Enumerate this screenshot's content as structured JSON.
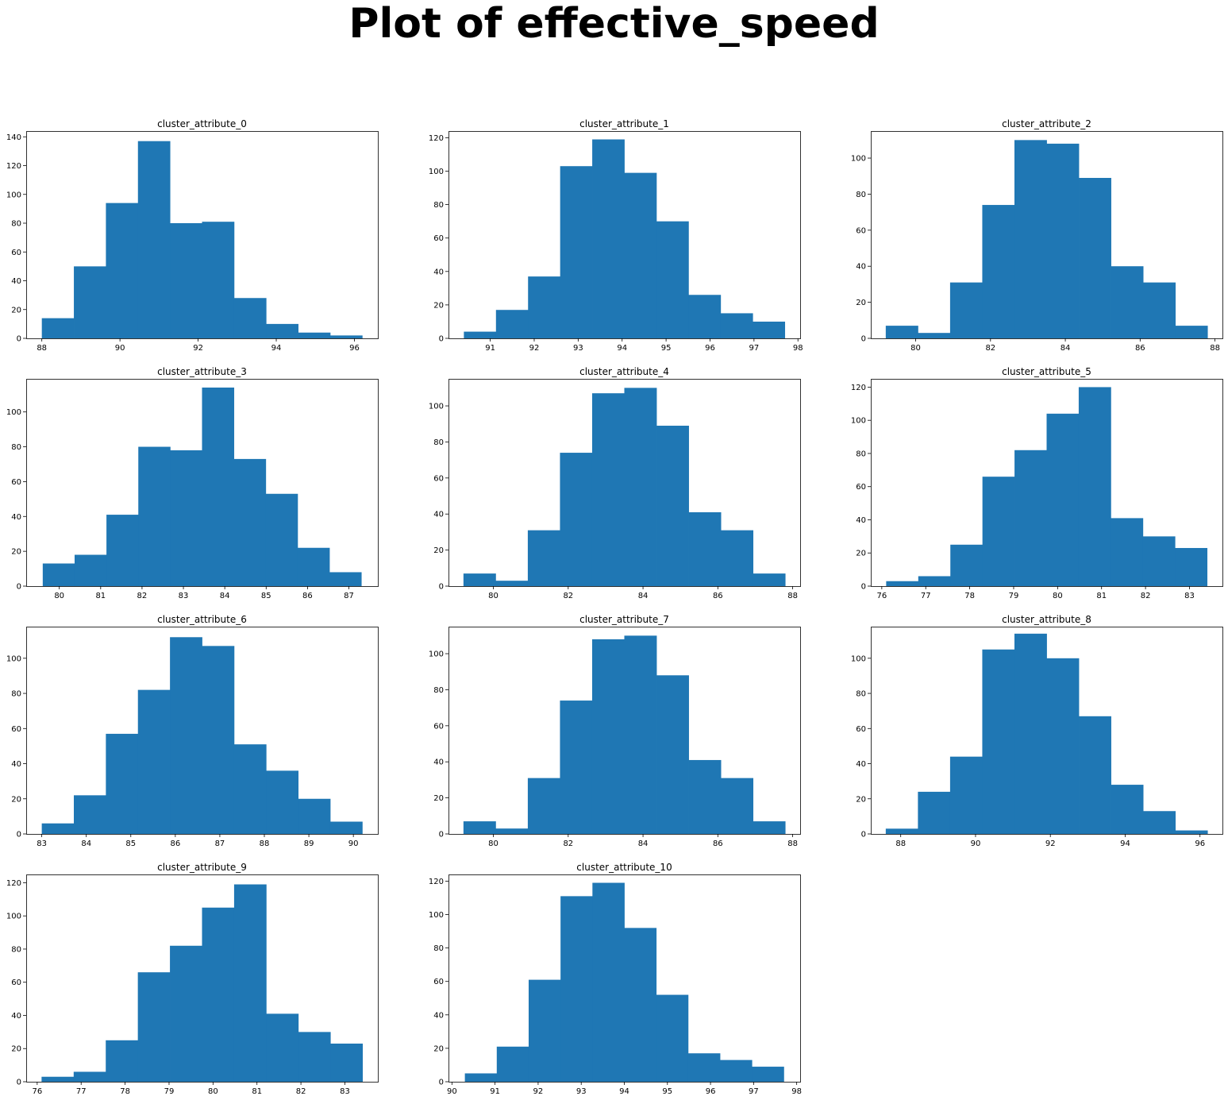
{
  "suptitle": "Plot of effective_speed",
  "bar_color": "#1f77b4",
  "chart_data": [
    {
      "type": "bar",
      "title": "cluster_attribute_0",
      "edges": [
        88.0,
        88.82,
        89.64,
        90.46,
        91.28,
        92.1,
        92.92,
        93.74,
        94.56,
        95.38,
        96.2
      ],
      "values": [
        14,
        50,
        94,
        137,
        80,
        81,
        28,
        10,
        4,
        2
      ],
      "xticks": [
        88,
        90,
        92,
        94,
        96
      ],
      "xticklabels": [
        "88",
        "90",
        "92",
        "94",
        "96"
      ],
      "xlim": [
        87.6,
        96.6
      ],
      "yticks": [
        0,
        20,
        40,
        60,
        80,
        100,
        120,
        140
      ],
      "yticklabels": [
        "0",
        "20",
        "40",
        "60",
        "80",
        "100",
        "120",
        "140"
      ],
      "ylim": [
        0,
        144
      ]
    },
    {
      "type": "bar",
      "title": "cluster_attribute_1",
      "edges": [
        90.4,
        91.13,
        91.86,
        92.59,
        93.32,
        94.05,
        94.78,
        95.51,
        96.24,
        96.97,
        97.7
      ],
      "values": [
        4,
        17,
        37,
        103,
        119,
        99,
        70,
        26,
        15,
        10
      ],
      "xticks": [
        91,
        92,
        93,
        94,
        95,
        96,
        97,
        98
      ],
      "xticklabels": [
        "91",
        "92",
        "93",
        "94",
        "95",
        "96",
        "97",
        "98"
      ],
      "xlim": [
        90.05,
        98.05
      ],
      "yticks": [
        0,
        20,
        40,
        60,
        80,
        100,
        120
      ],
      "yticklabels": [
        "0",
        "20",
        "40",
        "60",
        "80",
        "100",
        "120"
      ],
      "ylim": [
        0,
        124
      ]
    },
    {
      "type": "bar",
      "title": "cluster_attribute_2",
      "edges": [
        79.2,
        80.06,
        80.92,
        81.78,
        82.64,
        83.5,
        84.36,
        85.22,
        86.08,
        86.94,
        87.8
      ],
      "values": [
        7,
        3,
        31,
        74,
        110,
        108,
        89,
        40,
        31,
        7
      ],
      "xticks": [
        80,
        82,
        84,
        86,
        88
      ],
      "xticklabels": [
        "80",
        "82",
        "84",
        "86",
        "88"
      ],
      "xlim": [
        78.8,
        88.2
      ],
      "yticks": [
        0,
        20,
        40,
        60,
        80,
        100
      ],
      "yticklabels": [
        "0",
        "20",
        "40",
        "60",
        "80",
        "100"
      ],
      "ylim": [
        0,
        115
      ]
    },
    {
      "type": "bar",
      "title": "cluster_attribute_3",
      "edges": [
        79.6,
        80.37,
        81.14,
        81.91,
        82.68,
        83.45,
        84.22,
        84.99,
        85.76,
        86.53,
        87.3
      ],
      "values": [
        13,
        18,
        41,
        80,
        78,
        114,
        73,
        53,
        22,
        8
      ],
      "xticks": [
        80,
        81,
        82,
        83,
        84,
        85,
        86,
        87
      ],
      "xticklabels": [
        "80",
        "81",
        "82",
        "83",
        "84",
        "85",
        "86",
        "87"
      ],
      "xlim": [
        79.2,
        87.7
      ],
      "yticks": [
        0,
        20,
        40,
        60,
        80,
        100
      ],
      "yticklabels": [
        "0",
        "20",
        "40",
        "60",
        "80",
        "100"
      ],
      "ylim": [
        0,
        119
      ]
    },
    {
      "type": "bar",
      "title": "cluster_attribute_4",
      "edges": [
        79.2,
        80.06,
        80.92,
        81.78,
        82.64,
        83.5,
        84.36,
        85.22,
        86.08,
        86.94,
        87.8
      ],
      "values": [
        7,
        3,
        31,
        74,
        107,
        110,
        89,
        41,
        31,
        7
      ],
      "xticks": [
        80,
        82,
        84,
        86,
        88
      ],
      "xticklabels": [
        "80",
        "82",
        "84",
        "86",
        "88"
      ],
      "xlim": [
        78.8,
        88.2
      ],
      "yticks": [
        0,
        20,
        40,
        60,
        80,
        100
      ],
      "yticklabels": [
        "0",
        "20",
        "40",
        "60",
        "80",
        "100"
      ],
      "ylim": [
        0,
        115
      ]
    },
    {
      "type": "bar",
      "title": "cluster_attribute_5",
      "edges": [
        76.1,
        76.83,
        77.56,
        78.29,
        79.02,
        79.75,
        80.48,
        81.21,
        81.94,
        82.67,
        83.4
      ],
      "values": [
        3,
        6,
        25,
        66,
        82,
        104,
        120,
        41,
        30,
        23
      ],
      "xticks": [
        76,
        77,
        78,
        79,
        80,
        81,
        82,
        83
      ],
      "xticklabels": [
        "76",
        "77",
        "78",
        "79",
        "80",
        "81",
        "82",
        "83"
      ],
      "xlim": [
        75.75,
        83.75
      ],
      "yticks": [
        0,
        20,
        40,
        60,
        80,
        100,
        120
      ],
      "yticklabels": [
        "0",
        "20",
        "40",
        "60",
        "80",
        "100",
        "120"
      ],
      "ylim": [
        0,
        125
      ]
    },
    {
      "type": "bar",
      "title": "cluster_attribute_6",
      "edges": [
        83.0,
        83.72,
        84.44,
        85.16,
        85.88,
        86.6,
        87.32,
        88.04,
        88.76,
        89.48,
        90.2
      ],
      "values": [
        6,
        22,
        57,
        82,
        112,
        107,
        51,
        36,
        20,
        7
      ],
      "xticks": [
        83,
        84,
        85,
        86,
        87,
        88,
        89,
        90
      ],
      "xticklabels": [
        "83",
        "84",
        "85",
        "86",
        "87",
        "88",
        "89",
        "90"
      ],
      "xlim": [
        82.65,
        90.55
      ],
      "yticks": [
        0,
        20,
        40,
        60,
        80,
        100
      ],
      "yticklabels": [
        "0",
        "20",
        "40",
        "60",
        "80",
        "100"
      ],
      "ylim": [
        0,
        118
      ]
    },
    {
      "type": "bar",
      "title": "cluster_attribute_7",
      "edges": [
        79.2,
        80.06,
        80.92,
        81.78,
        82.64,
        83.5,
        84.36,
        85.22,
        86.08,
        86.94,
        87.8
      ],
      "values": [
        7,
        3,
        31,
        74,
        108,
        110,
        88,
        41,
        31,
        7
      ],
      "xticks": [
        80,
        82,
        84,
        86,
        88
      ],
      "xticklabels": [
        "80",
        "82",
        "84",
        "86",
        "88"
      ],
      "xlim": [
        78.8,
        88.2
      ],
      "yticks": [
        0,
        20,
        40,
        60,
        80,
        100
      ],
      "yticklabels": [
        "0",
        "20",
        "40",
        "60",
        "80",
        "100"
      ],
      "ylim": [
        0,
        115
      ]
    },
    {
      "type": "bar",
      "title": "cluster_attribute_8",
      "edges": [
        87.6,
        88.46,
        89.32,
        90.18,
        91.04,
        91.9,
        92.76,
        93.62,
        94.48,
        95.34,
        96.2
      ],
      "values": [
        3,
        24,
        44,
        105,
        114,
        100,
        67,
        28,
        13,
        2
      ],
      "xticks": [
        88,
        90,
        92,
        94,
        96
      ],
      "xticklabels": [
        "88",
        "90",
        "92",
        "94",
        "96"
      ],
      "xlim": [
        87.2,
        96.6
      ],
      "yticks": [
        0,
        20,
        40,
        60,
        80,
        100
      ],
      "yticklabels": [
        "0",
        "20",
        "40",
        "60",
        "80",
        "100"
      ],
      "ylim": [
        0,
        118
      ]
    },
    {
      "type": "bar",
      "title": "cluster_attribute_9",
      "edges": [
        76.1,
        76.83,
        77.56,
        78.29,
        79.02,
        79.75,
        80.48,
        81.21,
        81.94,
        82.67,
        83.4
      ],
      "values": [
        3,
        6,
        25,
        66,
        82,
        105,
        119,
        41,
        30,
        23
      ],
      "xticks": [
        76,
        77,
        78,
        79,
        80,
        81,
        82,
        83
      ],
      "xticklabels": [
        "76",
        "77",
        "78",
        "79",
        "80",
        "81",
        "82",
        "83"
      ],
      "xlim": [
        75.75,
        83.75
      ],
      "yticks": [
        0,
        20,
        40,
        60,
        80,
        100,
        120
      ],
      "yticklabels": [
        "0",
        "20",
        "40",
        "60",
        "80",
        "100",
        "120"
      ],
      "ylim": [
        0,
        125
      ]
    },
    {
      "type": "bar",
      "title": "cluster_attribute_10",
      "edges": [
        90.3,
        91.04,
        91.78,
        92.52,
        93.26,
        94.0,
        94.74,
        95.48,
        96.22,
        96.96,
        97.7
      ],
      "values": [
        5,
        21,
        61,
        111,
        119,
        92,
        52,
        17,
        13,
        9
      ],
      "xticks": [
        90,
        91,
        92,
        93,
        94,
        95,
        96,
        97,
        98
      ],
      "xticklabels": [
        "90",
        "91",
        "92",
        "93",
        "94",
        "95",
        "96",
        "97",
        "98"
      ],
      "xlim": [
        89.92,
        98.08
      ],
      "yticks": [
        0,
        20,
        40,
        60,
        80,
        100,
        120
      ],
      "yticklabels": [
        "0",
        "20",
        "40",
        "60",
        "80",
        "100",
        "120"
      ],
      "ylim": [
        0,
        124
      ]
    }
  ]
}
